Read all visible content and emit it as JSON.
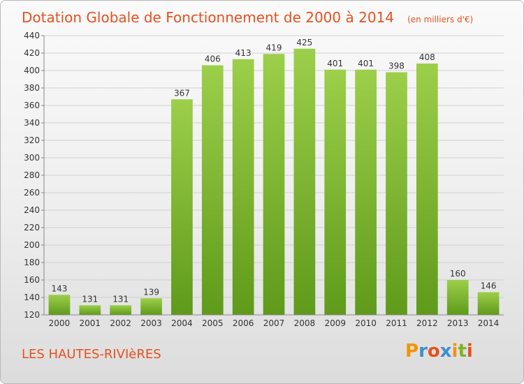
{
  "title": "Dotation Globale de Fonctionnement de 2000 à 2014",
  "unit": "(en milliers d'€)",
  "commune": "LES HAUTES-RIVIèRES",
  "logo": {
    "text": "Proxiti",
    "letters": [
      "P",
      "r",
      "o",
      "x",
      "i",
      "t",
      "i"
    ],
    "colors": [
      "#f29400",
      "#3a8fd0",
      "#e8501e",
      "#3a8fd0",
      "#f29400",
      "#7cb327",
      "#e8501e"
    ]
  },
  "colors": {
    "bar_top": "#9ccf4a",
    "bar_bottom": "#5f9a1a",
    "title": "#e8501e"
  },
  "chart_data": {
    "type": "bar",
    "categories": [
      "2000",
      "2001",
      "2002",
      "2003",
      "2004",
      "2005",
      "2006",
      "2007",
      "2008",
      "2009",
      "2010",
      "2011",
      "2012",
      "2013",
      "2014"
    ],
    "values": [
      143,
      131,
      131,
      139,
      367,
      406,
      413,
      419,
      425,
      401,
      401,
      398,
      408,
      160,
      146
    ],
    "yticks": [
      120,
      140,
      160,
      180,
      200,
      220,
      240,
      260,
      280,
      300,
      320,
      340,
      360,
      380,
      400,
      420,
      440
    ],
    "ylim": [
      120,
      440
    ],
    "grid": true,
    "legend": "none"
  }
}
